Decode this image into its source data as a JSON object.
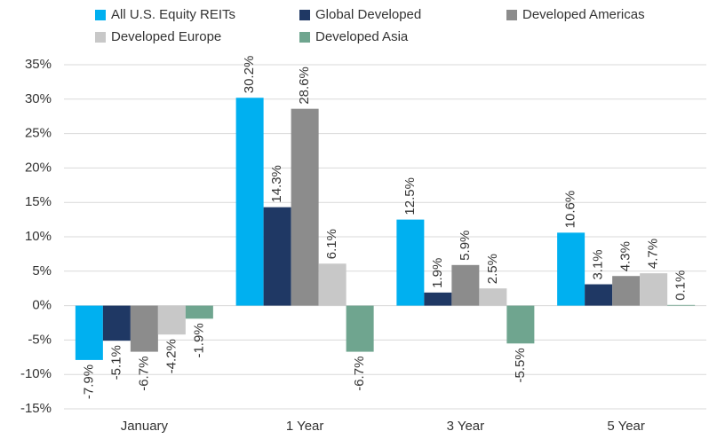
{
  "chart_data": {
    "type": "bar",
    "categories": [
      "January",
      "1 Year",
      "3 Year",
      "5 Year"
    ],
    "series": [
      {
        "name": "All U.S. Equity REITs",
        "color": "#00b0f0",
        "values": [
          -7.9,
          30.2,
          12.5,
          10.6
        ],
        "value_labels": [
          "-7.9%",
          "30.2%",
          "12.5%",
          "10.6%"
        ]
      },
      {
        "name": "Global Developed",
        "color": "#1f3864",
        "values": [
          -5.1,
          14.3,
          1.9,
          3.1
        ],
        "value_labels": [
          "-5.1%",
          "14.3%",
          "1.9%",
          "3.1%"
        ]
      },
      {
        "name": "Developed Americas",
        "color": "#8c8c8c",
        "values": [
          -6.7,
          28.6,
          5.9,
          4.3
        ],
        "value_labels": [
          "-6.7%",
          "28.6%",
          "5.9%",
          "4.3%"
        ]
      },
      {
        "name": "Developed Europe",
        "color": "#c8c8c8",
        "values": [
          -4.2,
          6.1,
          2.5,
          4.7
        ],
        "value_labels": [
          "-4.2%",
          "6.1%",
          "2.5%",
          "4.7%"
        ]
      },
      {
        "name": "Developed Asia",
        "color": "#6fa58f",
        "values": [
          -1.9,
          -6.7,
          -5.5,
          0.1
        ],
        "value_labels": [
          "-1.9%",
          "-6.7%",
          "-5.5%",
          "0.1%"
        ]
      }
    ],
    "ylim": [
      -15,
      35
    ],
    "yticks": [
      {
        "value": -15,
        "label": "-15%"
      },
      {
        "value": -10,
        "label": "-10%"
      },
      {
        "value": -5,
        "label": "-5%"
      },
      {
        "value": 0,
        "label": "0%"
      },
      {
        "value": 5,
        "label": "5%"
      },
      {
        "value": 10,
        "label": "10%"
      },
      {
        "value": 15,
        "label": "15%"
      },
      {
        "value": 20,
        "label": "20%"
      },
      {
        "value": 25,
        "label": "25%"
      },
      {
        "value": 30,
        "label": "30%"
      },
      {
        "value": 35,
        "label": "35%"
      }
    ],
    "grid": true
  }
}
